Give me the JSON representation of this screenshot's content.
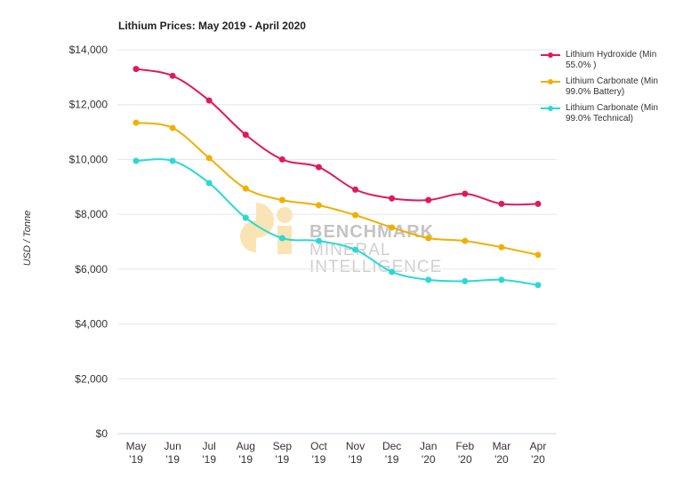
{
  "chart_data": {
    "type": "line",
    "title": "Lithium Prices: May 2019 - April 2020",
    "xlabel": "",
    "ylabel": "USD / Tonne",
    "ylim": [
      0,
      14000
    ],
    "yticks": [
      "$0",
      "$2,000",
      "$4,000",
      "$6,000",
      "$8,000",
      "$10,000",
      "$12,000",
      "$14,000"
    ],
    "categories": [
      [
        "May",
        "'19"
      ],
      [
        "Jun",
        "'19"
      ],
      [
        "Jul",
        "'19"
      ],
      [
        "Aug",
        "'19"
      ],
      [
        "Sep",
        "'19"
      ],
      [
        "Oct",
        "'19"
      ],
      [
        "Nov",
        "'19"
      ],
      [
        "Dec",
        "'19"
      ],
      [
        "Jan",
        "'20"
      ],
      [
        "Feb",
        "'20"
      ],
      [
        "Mar",
        "'20"
      ],
      [
        "Apr",
        "'20"
      ]
    ],
    "grid": true,
    "legend_position": "right",
    "series": [
      {
        "name": "Lithium Hydroxide (Min 55.0% )",
        "color": "#e0195a",
        "values": [
          13300,
          13050,
          12150,
          10900,
          10000,
          9720,
          8900,
          8580,
          8520,
          8750,
          8380,
          8380
        ]
      },
      {
        "name": "Lithium Carbonate (Min 99.0% Battery)",
        "color": "#f0b000",
        "values": [
          11340,
          11150,
          10050,
          8940,
          8520,
          8330,
          7970,
          7520,
          7130,
          7030,
          6800,
          6520
        ]
      },
      {
        "name": "Lithium Carbonate (Min 99.0% Technical)",
        "color": "#2ad9d6",
        "values": [
          9950,
          9950,
          9140,
          7870,
          7130,
          7030,
          6710,
          5900,
          5610,
          5560,
          5610,
          5420
        ]
      }
    ]
  },
  "watermark": {
    "line1": "BENCHMARK",
    "line2": "MINERAL",
    "line3": "INTELLIGENCE"
  }
}
